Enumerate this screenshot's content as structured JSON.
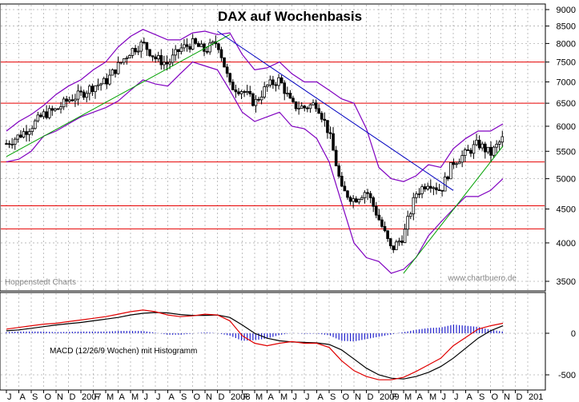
{
  "chart_data": [
    {
      "type": "candlestick",
      "title": "DAX auf Wochenbasis",
      "source_label": "Hoppenstedt Charts",
      "watermark": "www.chartbuero.de",
      "ylim": [
        3400,
        9000
      ],
      "y_scale": "log",
      "yticks": [
        3500,
        4000,
        4500,
        5000,
        5500,
        6000,
        6500,
        7000,
        7500,
        8000,
        8500,
        9000
      ],
      "x_month_labels": [
        "J",
        "A",
        "S",
        "O",
        "N",
        "D",
        "2007",
        "F",
        "M",
        "A",
        "M",
        "J",
        "J",
        "A",
        "S",
        "O",
        "N",
        "D",
        "2008",
        "F",
        "M",
        "A",
        "M",
        "J",
        "J",
        "A",
        "S",
        "O",
        "N",
        "D",
        "2009",
        "F",
        "M",
        "A",
        "M",
        "J",
        "J",
        "A",
        "S",
        "O",
        "N",
        "D",
        "201"
      ],
      "support_resistance": [
        7500,
        6500,
        5300,
        4550,
        4200
      ],
      "close_series_monthly": [
        {
          "month": "2006-07",
          "value": 5650
        },
        {
          "month": "2006-08",
          "value": 5800
        },
        {
          "month": "2006-09",
          "value": 6000
        },
        {
          "month": "2006-10",
          "value": 6250
        },
        {
          "month": "2006-11",
          "value": 6350
        },
        {
          "month": "2006-12",
          "value": 6580
        },
        {
          "month": "2007-01",
          "value": 6700
        },
        {
          "month": "2007-02",
          "value": 6900
        },
        {
          "month": "2007-03",
          "value": 7000
        },
        {
          "month": "2007-04",
          "value": 7400
        },
        {
          "month": "2007-05",
          "value": 7800
        },
        {
          "month": "2007-06",
          "value": 8000
        },
        {
          "month": "2007-07",
          "value": 7600
        },
        {
          "month": "2007-08",
          "value": 7450
        },
        {
          "month": "2007-09",
          "value": 7850
        },
        {
          "month": "2007-10",
          "value": 8000
        },
        {
          "month": "2007-11",
          "value": 7800
        },
        {
          "month": "2007-12",
          "value": 8050
        },
        {
          "month": "2008-01",
          "value": 6900
        },
        {
          "month": "2008-02",
          "value": 6800
        },
        {
          "month": "2008-03",
          "value": 6500
        },
        {
          "month": "2008-04",
          "value": 6900
        },
        {
          "month": "2008-05",
          "value": 7050
        },
        {
          "month": "2008-06",
          "value": 6450
        },
        {
          "month": "2008-07",
          "value": 6400
        },
        {
          "month": "2008-08",
          "value": 6500
        },
        {
          "month": "2008-09",
          "value": 5850
        },
        {
          "month": "2008-10",
          "value": 4800
        },
        {
          "month": "2008-11",
          "value": 4650
        },
        {
          "month": "2008-12",
          "value": 4800
        },
        {
          "month": "2009-01",
          "value": 4350
        },
        {
          "month": "2009-02",
          "value": 3900
        },
        {
          "month": "2009-03",
          "value": 4100
        },
        {
          "month": "2009-04",
          "value": 4750
        },
        {
          "month": "2009-05",
          "value": 4950
        },
        {
          "month": "2009-06",
          "value": 4800
        },
        {
          "month": "2009-07",
          "value": 5300
        },
        {
          "month": "2009-08",
          "value": 5450
        },
        {
          "month": "2009-09",
          "value": 5650
        },
        {
          "month": "2009-10",
          "value": 5450
        },
        {
          "month": "2009-11",
          "value": 5750
        }
      ],
      "bollinger_upper": [
        5900,
        6100,
        6250,
        6450,
        6700,
        6900,
        7050,
        7300,
        7500,
        7900,
        8200,
        8400,
        8250,
        8100,
        8100,
        8300,
        8350,
        8250,
        8300,
        7700,
        7300,
        7350,
        7500,
        7200,
        7000,
        7000,
        6800,
        6600,
        6500,
        5950,
        5200,
        5000,
        4950,
        5050,
        5250,
        5200,
        5550,
        5750,
        5900,
        5900,
        6050
      ],
      "bollinger_lower": [
        5300,
        5350,
        5500,
        5800,
        5900,
        6050,
        6200,
        6300,
        6400,
        6550,
        6800,
        7050,
        6950,
        6900,
        7200,
        7500,
        7400,
        7300,
        6800,
        6300,
        6100,
        6200,
        6300,
        6000,
        5950,
        5750,
        5300,
        4600,
        4000,
        3800,
        3750,
        3600,
        3650,
        3800,
        4100,
        4300,
        4500,
        4700,
        4700,
        4800,
        5000
      ],
      "trendlines": [
        {
          "color": "#00a000",
          "points": [
            [
              "2006-07",
              5400
            ],
            [
              "2008-01",
              8250
            ]
          ]
        },
        {
          "color": "#0000c0",
          "points": [
            [
              "2007-12",
              8350
            ],
            [
              "2009-07",
              4800
            ]
          ]
        },
        {
          "color": "#00a000",
          "points": [
            [
              "2009-03",
              3600
            ],
            [
              "2009-11",
              5600
            ]
          ]
        }
      ]
    },
    {
      "type": "line",
      "title": "MACD (12/26/9 Wochen) mit Histogramm",
      "ylim": [
        -600,
        450
      ],
      "yticks": [
        -500,
        0
      ],
      "macd_monthly": [
        50,
        70,
        90,
        110,
        120,
        140,
        160,
        180,
        200,
        230,
        260,
        280,
        260,
        220,
        200,
        210,
        230,
        220,
        150,
        -30,
        -120,
        -150,
        -120,
        -100,
        -120,
        -120,
        -170,
        -330,
        -450,
        -520,
        -560,
        -560,
        -530,
        -460,
        -380,
        -300,
        -150,
        -50,
        50,
        90,
        120
      ],
      "signal_monthly": [
        30,
        40,
        60,
        80,
        100,
        115,
        130,
        150,
        170,
        190,
        220,
        240,
        250,
        245,
        225,
        215,
        215,
        220,
        190,
        100,
        0,
        -60,
        -90,
        -105,
        -110,
        -115,
        -135,
        -200,
        -310,
        -420,
        -500,
        -540,
        -550,
        -520,
        -470,
        -400,
        -300,
        -180,
        -60,
        30,
        90
      ],
      "histogram_color": "#2222cc"
    }
  ]
}
